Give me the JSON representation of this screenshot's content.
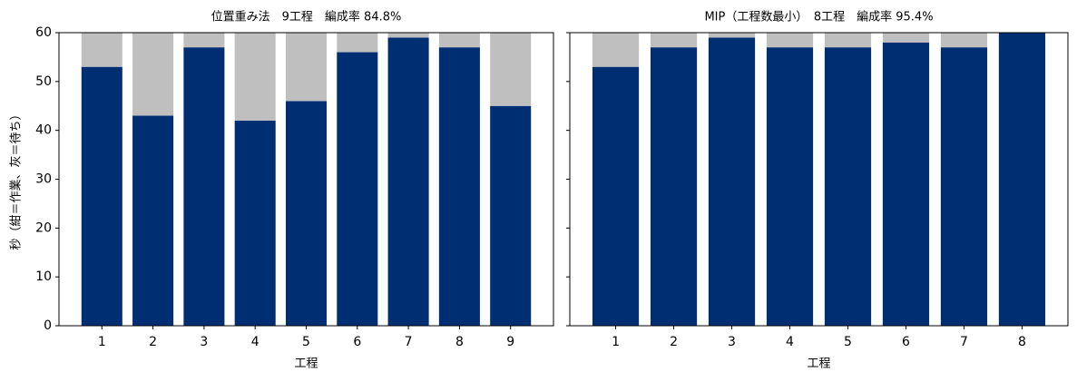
{
  "chart_data": [
    {
      "type": "bar",
      "stacked": true,
      "title": "位置重み法　9工程　編成率 84.8%",
      "xlabel": "工程",
      "ylabel": "秒（紺＝作業、灰＝待ち）",
      "categories": [
        "1",
        "2",
        "3",
        "4",
        "5",
        "6",
        "7",
        "8",
        "9"
      ],
      "series": [
        {
          "color": "#002e72",
          "values": [
            53,
            43,
            57,
            42,
            46,
            56,
            59,
            57,
            45
          ]
        },
        {
          "color": "#bfbfbf",
          "values": [
            7,
            17,
            3,
            18,
            14,
            4,
            1,
            3,
            15
          ]
        }
      ],
      "ylim": [
        0,
        60
      ],
      "yticks": [
        0,
        10,
        20,
        30,
        40,
        50,
        60
      ],
      "show_ytick_labels": true
    },
    {
      "type": "bar",
      "stacked": true,
      "title": "MIP（工程数最小）　8工程　編成率 95.4%",
      "xlabel": "工程",
      "categories": [
        "1",
        "2",
        "3",
        "4",
        "5",
        "6",
        "7",
        "8"
      ],
      "series": [
        {
          "color": "#002e72",
          "values": [
            53,
            57,
            59,
            57,
            57,
            58,
            57,
            60
          ]
        },
        {
          "color": "#bfbfbf",
          "values": [
            7,
            3,
            1,
            3,
            3,
            2,
            3,
            0
          ]
        }
      ],
      "ylim": [
        0,
        60
      ],
      "yticks": [
        0,
        10,
        20,
        30,
        40,
        50,
        60
      ],
      "show_ytick_labels": false
    }
  ]
}
